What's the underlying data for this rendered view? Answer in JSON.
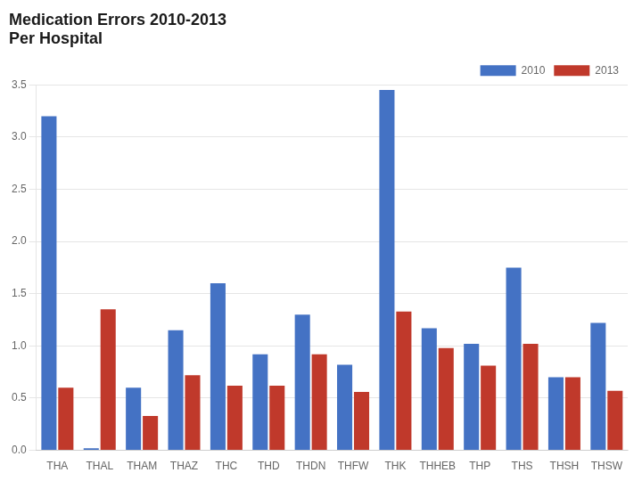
{
  "chart_data": {
    "type": "bar",
    "title": "Medication Errors 2010-2013",
    "subtitle": "Per Hospital",
    "categories": [
      "THA",
      "THAL",
      "THAM",
      "THAZ",
      "THC",
      "THD",
      "THDN",
      "THFW",
      "THK",
      "THHEB",
      "THP",
      "THS",
      "THSH",
      "THSW"
    ],
    "series": [
      {
        "name": "2010",
        "color": "#4472C4",
        "values": [
          3.2,
          0.02,
          0.6,
          1.15,
          1.6,
          0.92,
          1.3,
          0.82,
          3.45,
          1.17,
          1.02,
          1.75,
          0.7,
          1.22
        ]
      },
      {
        "name": "2013",
        "color": "#C0392B",
        "values": [
          0.6,
          1.35,
          0.33,
          0.72,
          0.62,
          0.62,
          0.92,
          0.56,
          1.33,
          0.98,
          0.81,
          1.02,
          0.7,
          0.57
        ]
      }
    ],
    "ylim": [
      0,
      3.5
    ],
    "yticks": [
      {
        "value": 0,
        "label": "0.0"
      },
      0.5,
      {
        "value": 1,
        "label": "1.0"
      },
      1.5,
      {
        "value": 2,
        "label": "2.0"
      },
      2.5,
      {
        "value": 3,
        "label": "3.0"
      },
      3.5
    ],
    "grid": true,
    "legend": "upper right"
  }
}
